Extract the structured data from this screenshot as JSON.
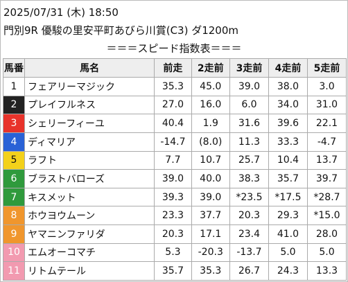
{
  "header": {
    "datetime": "2025/07/31 (木) 18:50",
    "race": "門別9R 優駿の里安平町あびら川賞(C3) ダ1200m",
    "title": "＝＝＝スピード指数表＝＝＝"
  },
  "table": {
    "columns": [
      "馬番",
      "馬名",
      "前走",
      "2走前",
      "3走前",
      "4走前",
      "5走前"
    ],
    "rows": [
      [
        "1",
        "フェアリーマジック",
        "35.3",
        "45.0",
        "39.0",
        "38.0",
        "3.0"
      ],
      [
        "2",
        "プレイフルネス",
        "27.0",
        "16.0",
        "6.0",
        "34.0",
        "31.0"
      ],
      [
        "3",
        "シェリーフィーユ",
        "40.4",
        "1.9",
        "31.6",
        "39.6",
        "22.1"
      ],
      [
        "4",
        "ディマリア",
        "-14.7",
        "(8.0)",
        "11.3",
        "33.3",
        "-4.7"
      ],
      [
        "5",
        "ラフト",
        "7.7",
        "10.7",
        "25.7",
        "10.4",
        "13.7"
      ],
      [
        "6",
        "ブラストバローズ",
        "39.0",
        "40.0",
        "38.3",
        "35.7",
        "39.7"
      ],
      [
        "7",
        "キスメット",
        "39.3",
        "39.0",
        "*23.5",
        "*17.5",
        "*28.7"
      ],
      [
        "8",
        "ホウヨウムーン",
        "23.3",
        "37.7",
        "20.3",
        "29.3",
        "*15.0"
      ],
      [
        "9",
        "ヤマニンファリダ",
        "20.3",
        "17.1",
        "23.4",
        "41.0",
        "28.0"
      ],
      [
        "10",
        "エムオーコマチ",
        "5.3",
        "-20.3",
        "-13.7",
        "5.0",
        "5.0"
      ],
      [
        "11",
        "リトムテール",
        "35.7",
        "35.3",
        "26.7",
        "24.3",
        "13.3"
      ]
    ]
  }
}
